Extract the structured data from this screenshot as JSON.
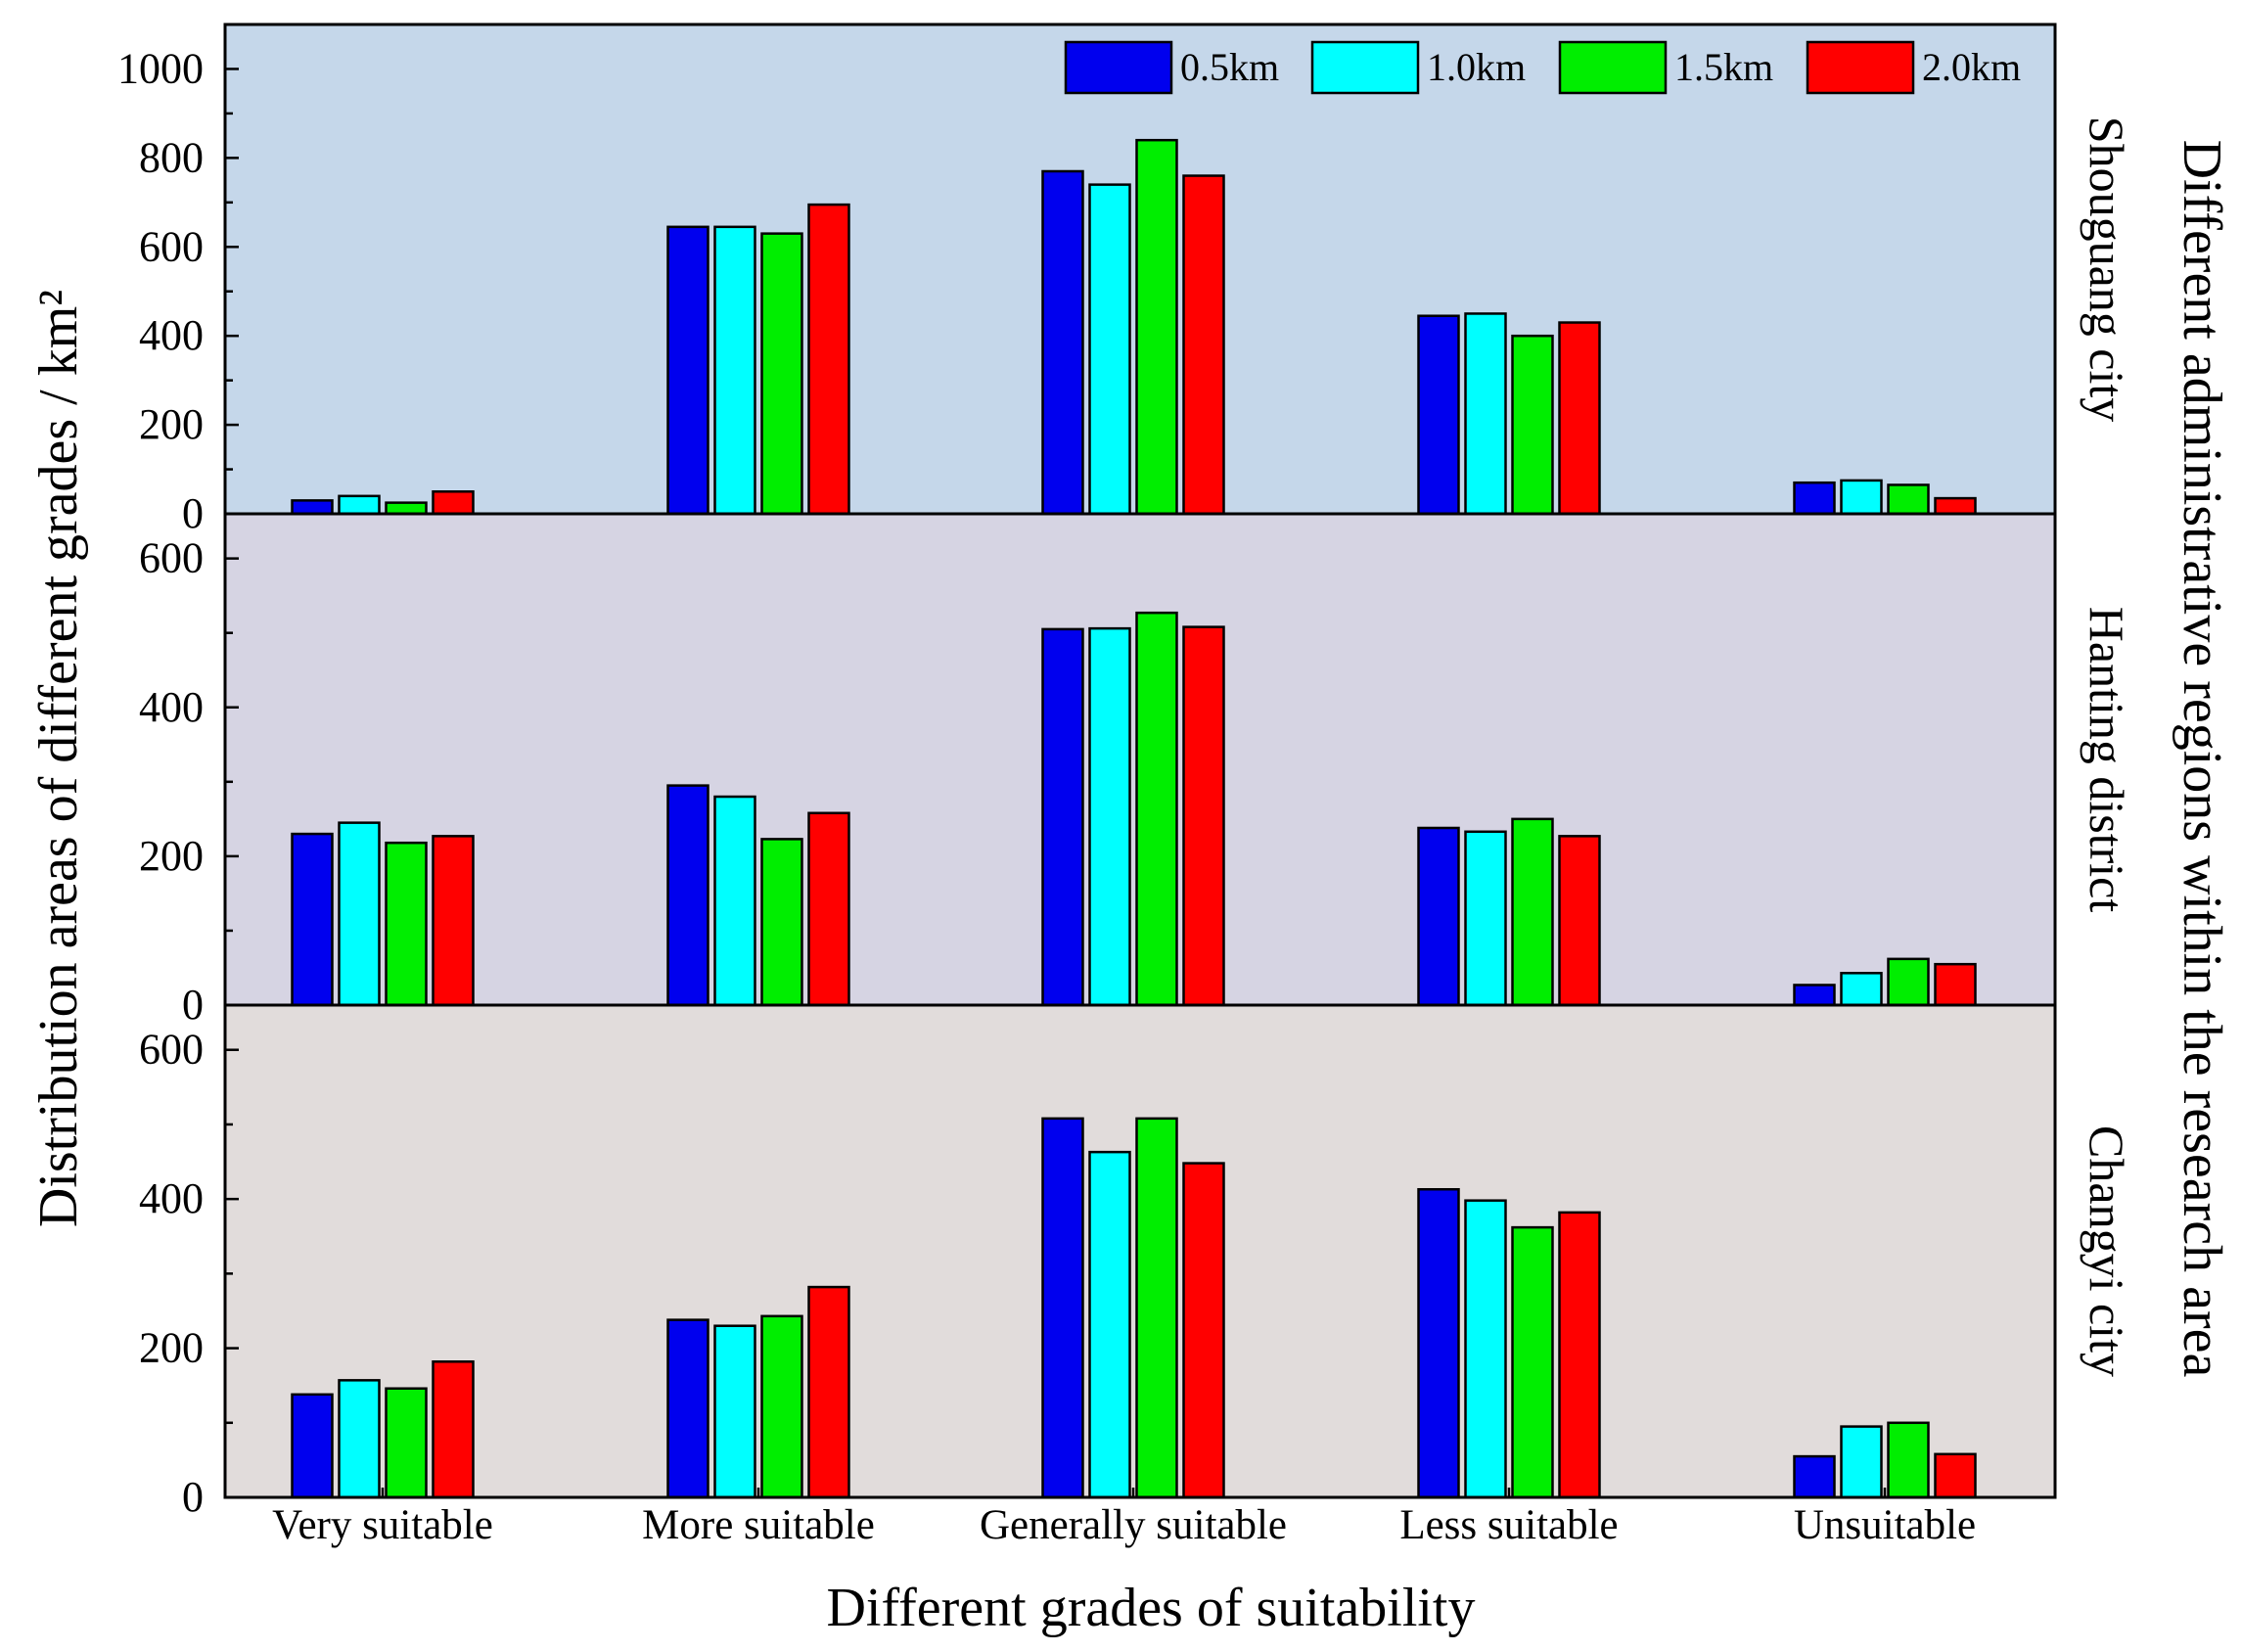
{
  "chart_data": {
    "type": "bar",
    "xlabel": "Different grades of suitability",
    "ylabel": "Distribution areas of different grades / km²",
    "right_label": "Different administrative regions within the research area",
    "categories": [
      "Very suitable",
      "More suitable",
      "Generally suitable",
      "Less suitable",
      "Unsuitable"
    ],
    "legend": [
      "0.5km",
      "1.0km",
      "1.5km",
      "2.0km"
    ],
    "series_colors": [
      "#0000ee",
      "#00ffff",
      "#00ee00",
      "#ff0000"
    ],
    "panels": [
      {
        "name": "Shouguang city",
        "background": "#c5d7ea",
        "ylim": [
          0,
          1100
        ],
        "yticks": [
          "0",
          "200",
          "400",
          "600",
          "800",
          "1000"
        ],
        "series": [
          {
            "name": "0.5km",
            "values": [
              30,
              645,
              770,
              445,
              70
            ]
          },
          {
            "name": "1.0km",
            "values": [
              40,
              645,
              740,
              450,
              75
            ]
          },
          {
            "name": "1.5km",
            "values": [
              25,
              630,
              840,
              400,
              65
            ]
          },
          {
            "name": "2.0km",
            "values": [
              50,
              695,
              760,
              430,
              35
            ]
          }
        ]
      },
      {
        "name": "Hanting district",
        "background": "#d6d4e3",
        "ylim": [
          0,
          660
        ],
        "yticks": [
          "0",
          "200",
          "400",
          "600"
        ],
        "series": [
          {
            "name": "0.5km",
            "values": [
              230,
              295,
              505,
              238,
              27
            ]
          },
          {
            "name": "1.0km",
            "values": [
              245,
              280,
              506,
              233,
              43
            ]
          },
          {
            "name": "1.5km",
            "values": [
              218,
              223,
              527,
              250,
              62
            ]
          },
          {
            "name": "2.0km",
            "values": [
              227,
              258,
              508,
              227,
              55
            ]
          }
        ]
      },
      {
        "name": "Changyi city",
        "background": "#e1dcdb",
        "ylim": [
          0,
          660
        ],
        "yticks": [
          "0",
          "200",
          "400",
          "600"
        ],
        "series": [
          {
            "name": "0.5km",
            "values": [
              138,
              238,
              508,
              413,
              55
            ]
          },
          {
            "name": "1.0km",
            "values": [
              157,
              230,
              463,
              398,
              95
            ]
          },
          {
            "name": "1.5km",
            "values": [
              146,
              243,
              508,
              362,
              100
            ]
          },
          {
            "name": "2.0km",
            "values": [
              182,
              282,
              448,
              382,
              58
            ]
          }
        ]
      }
    ]
  }
}
